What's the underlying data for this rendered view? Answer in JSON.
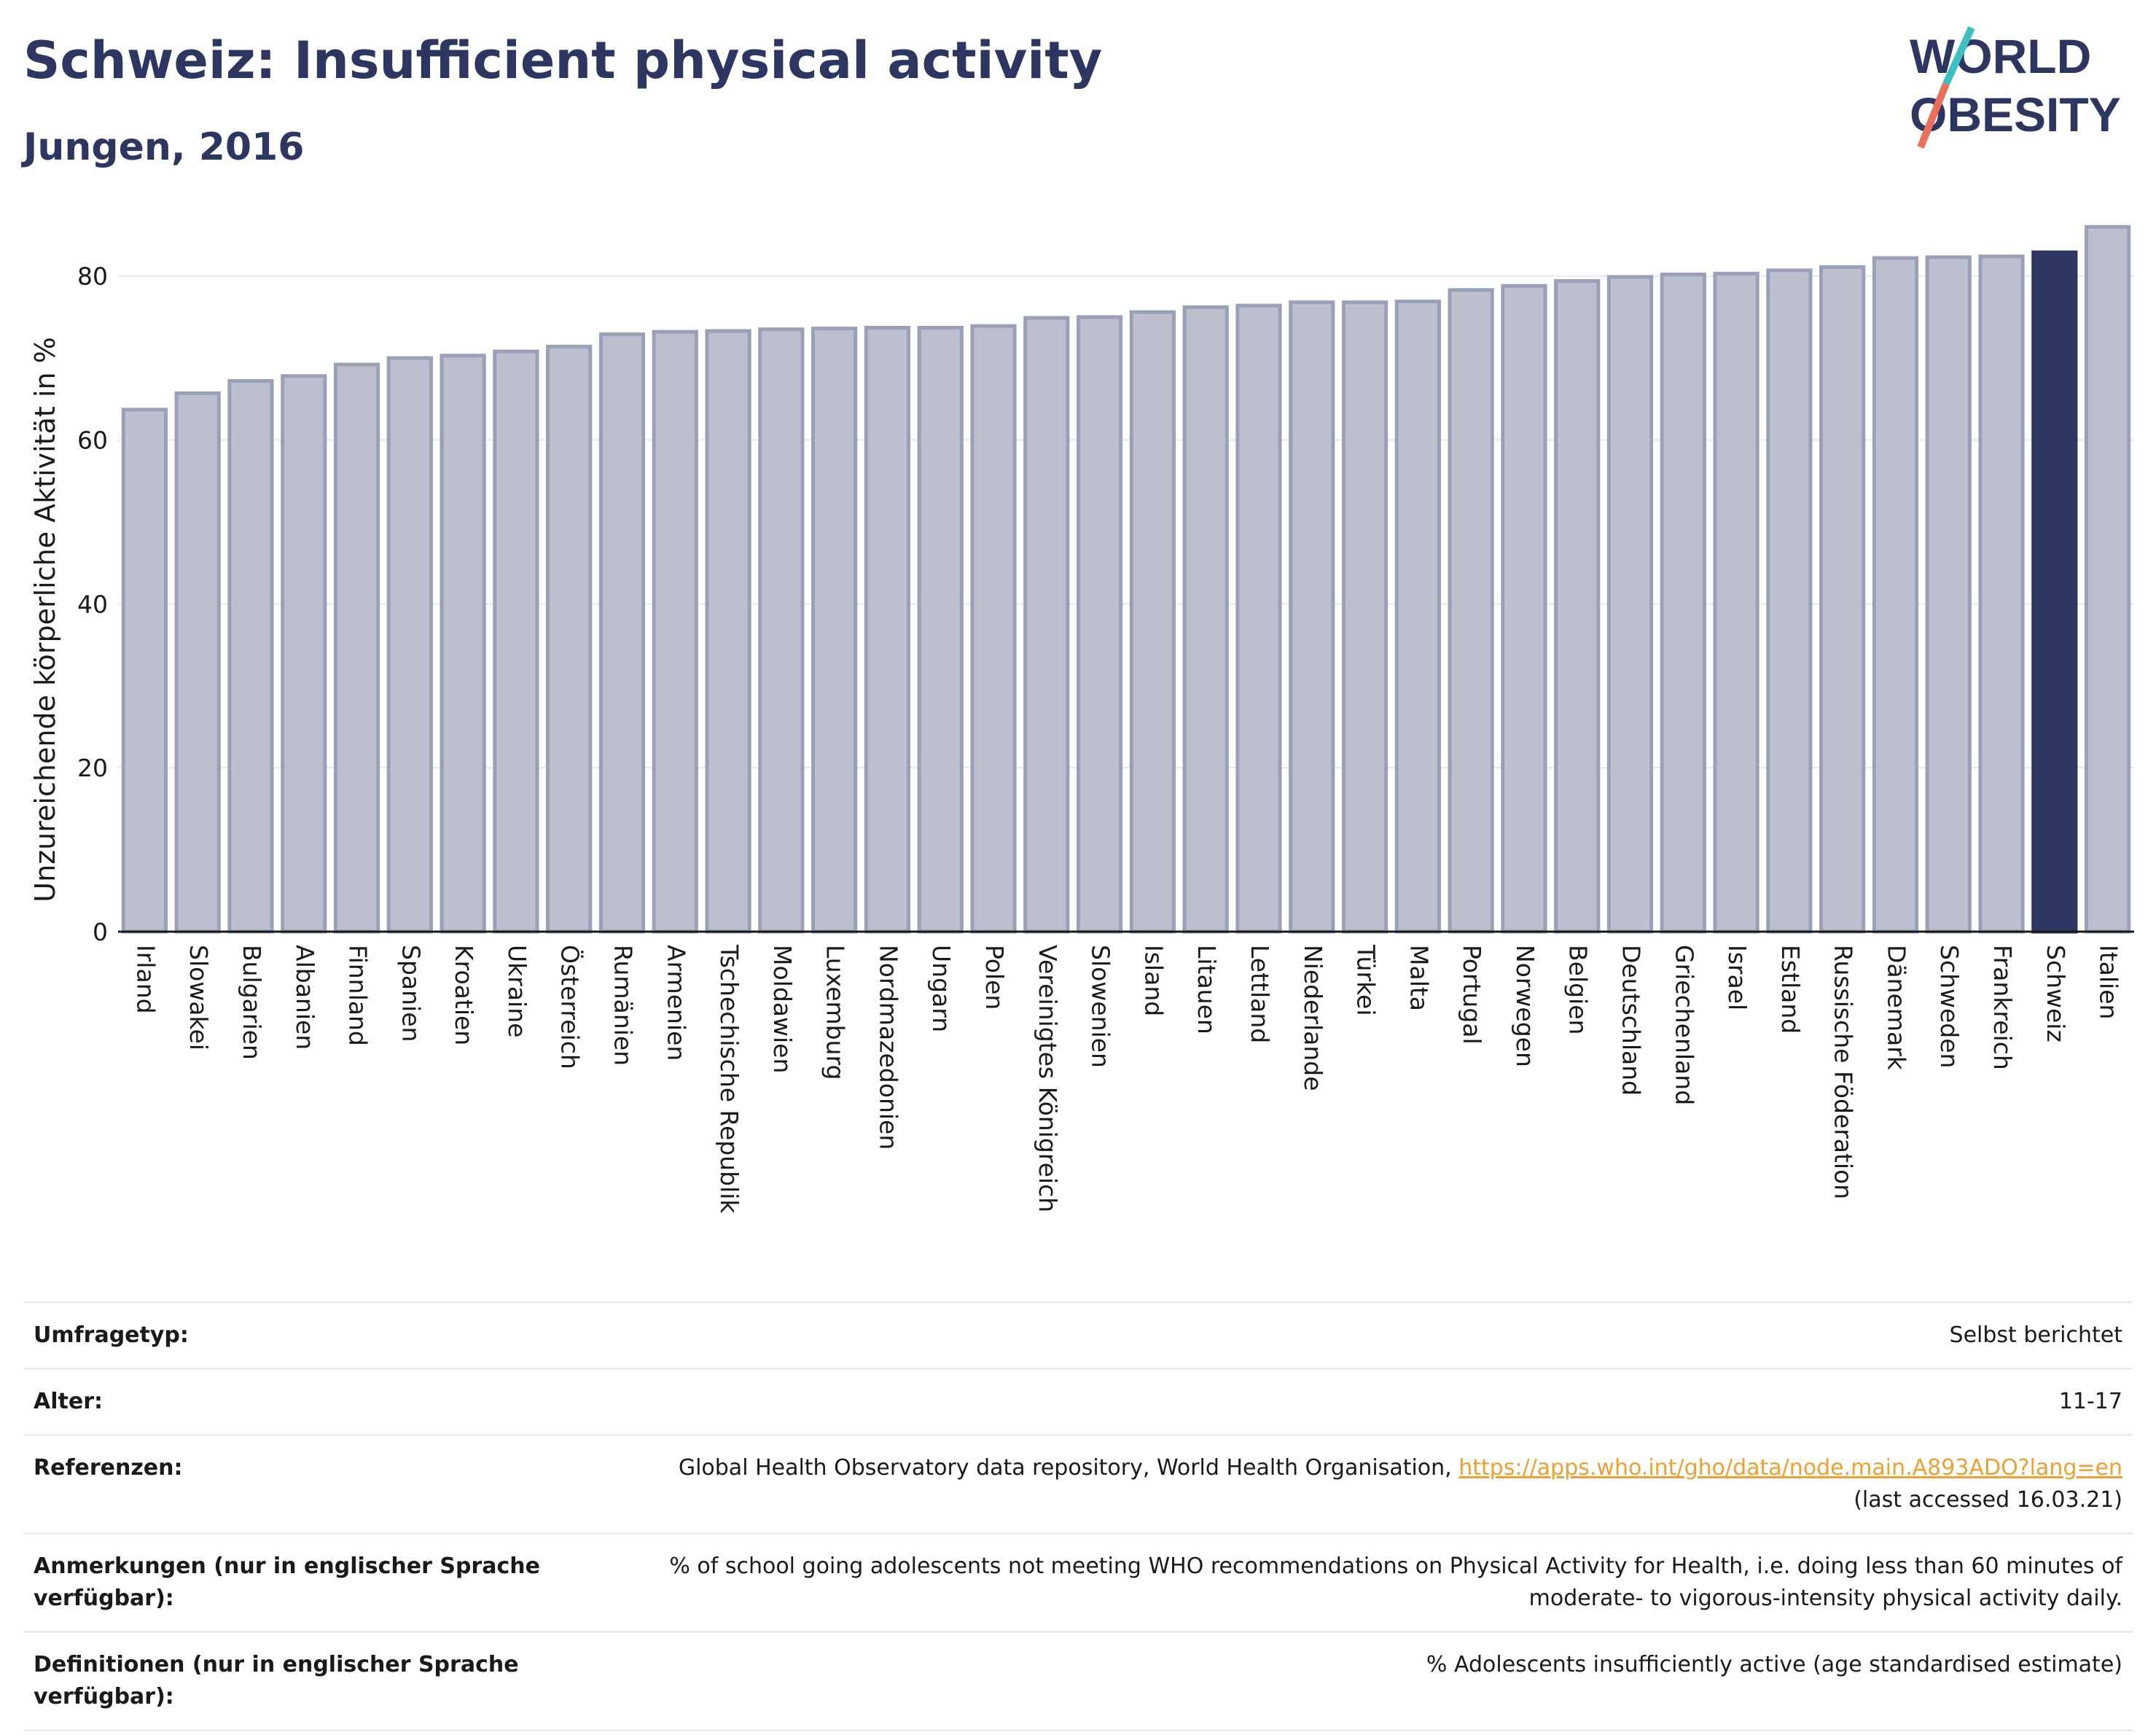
{
  "header": {
    "title": "Schweiz: Insufficient physical activity",
    "subtitle": "Jungen, 2016"
  },
  "logo": {
    "line1": "WORLD",
    "line2": "OBESITY"
  },
  "colors": {
    "bar": "#bcc0ce",
    "bar_border": "#9aa0b8",
    "highlight": "#2d3561",
    "title": "#2d3561",
    "link": "#f0a030"
  },
  "chart_data": {
    "type": "bar",
    "title": "Schweiz: Insufficient physical activity",
    "subtitle": "Jungen, 2016",
    "xlabel": "",
    "ylabel": "Unzureichende körperliche Aktivität in %",
    "ylim": [
      0,
      87
    ],
    "yticks": [
      0,
      20,
      40,
      60,
      80
    ],
    "grid": true,
    "highlight": "Schweiz",
    "categories": [
      "Irland",
      "Slowakei",
      "Bulgarien",
      "Albanien",
      "Finnland",
      "Spanien",
      "Kroatien",
      "Ukraine",
      "Österreich",
      "Rumänien",
      "Armenien",
      "Tschechische Republik",
      "Moldawien",
      "Luxemburg",
      "Nordmazedonien",
      "Ungarn",
      "Polen",
      "Vereinigtes Königreich",
      "Slowenien",
      "Island",
      "Litauen",
      "Lettland",
      "Niederlande",
      "Türkei",
      "Malta",
      "Portugal",
      "Norwegen",
      "Belgien",
      "Deutschland",
      "Griechenland",
      "Israel",
      "Estland",
      "Russische Föderation",
      "Dänemark",
      "Schweden",
      "Frankreich",
      "Schweiz",
      "Italien"
    ],
    "values": [
      63.7,
      65.7,
      67.2,
      67.8,
      69.2,
      70.0,
      70.3,
      70.8,
      71.4,
      72.9,
      73.2,
      73.3,
      73.5,
      73.6,
      73.7,
      73.7,
      73.9,
      74.9,
      75.0,
      75.6,
      76.2,
      76.4,
      76.8,
      76.8,
      76.9,
      78.3,
      78.8,
      79.4,
      79.9,
      80.2,
      80.3,
      80.7,
      81.1,
      82.2,
      82.3,
      82.4,
      82.9,
      86.0
    ]
  },
  "info": {
    "rows": [
      {
        "label": "Umfragetyp:",
        "value": "Selbst berichtet"
      },
      {
        "label": "Alter:",
        "value": "11-17"
      },
      {
        "label": "Referenzen:",
        "value": "Global Health Observatory data repository, World Health Organisation,",
        "link": "https://apps.who.int/gho/data/node.main.A893ADO?lang=en",
        "extra": "(last accessed 16.03.21)"
      },
      {
        "label": "Anmerkungen (nur in englischer Sprache verfügbar):",
        "value": "% of school going adolescents not meeting WHO recommendations on Physical Activity for Health, i.e. doing less than 60 minutes of moderate- to vigorous-intensity physical activity daily."
      },
      {
        "label": "Definitionen (nur in englischer Sprache verfügbar):",
        "value": "% Adolescents insufficiently active (age standardised estimate)"
      }
    ]
  }
}
